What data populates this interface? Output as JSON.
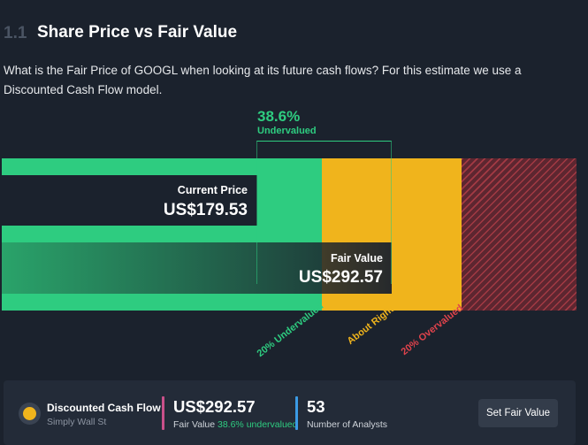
{
  "section": {
    "number": "1.1",
    "title": "Share Price vs Fair Value"
  },
  "description": "What is the Fair Price of GOOGL when looking at its future cash flows? For this estimate we use a Discounted Cash Flow model.",
  "valuation": {
    "percent": "38.6%",
    "status": "Undervalued",
    "current_price_label": "Current Price",
    "current_price": "US$179.53",
    "fair_value_label": "Fair Value",
    "fair_value": "US$292.57"
  },
  "zones": {
    "under": "20% Undervalued",
    "right": "About Right",
    "over": "20% Overvalued"
  },
  "colors": {
    "undervalued": "#2ecc80",
    "about_right": "#f0b41c",
    "overvalued": "#e0434c",
    "analyst_divider": "#3b9be5",
    "fair_divider": "#c9508a"
  },
  "card": {
    "icon": "simply-wall-st-logo-icon",
    "title": "Discounted Cash Flow",
    "subtitle": "Simply Wall St",
    "fair_value": "US$292.57",
    "fair_value_caption": "Fair Value",
    "fair_value_pct": "38.6% undervalued",
    "analysts_count": "53",
    "analysts_caption": "Number of Analysts",
    "button_label": "Set Fair Value"
  }
}
